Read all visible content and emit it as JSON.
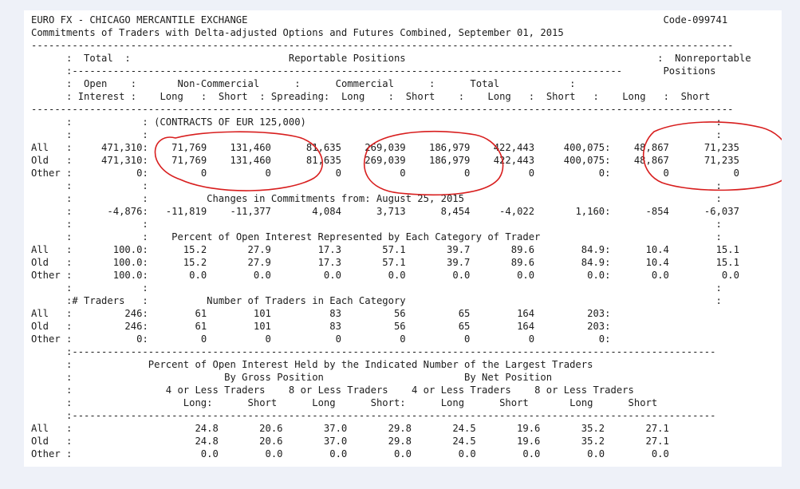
{
  "header": {
    "title": "EURO FX - CHICAGO MERCANTILE EXCHANGE",
    "code": "Code-099741",
    "subtitle": "Commitments of Traders with Delta-adjusted Options and Futures Combined, September 01, 2015"
  },
  "column_headers": {
    "total": "Total",
    "reportable_positions": "Reportable Positions",
    "nonreportable": "Nonreportable",
    "positions": "Positions",
    "open": "Open",
    "interest": "Interest",
    "non_commercial": "Non-Commercial",
    "commercial": "Commercial",
    "total_group": "Total",
    "long": "Long",
    "short": "Short",
    "spreading": "Spreading:"
  },
  "contracts_note": "(CONTRACTS OF EUR 125,000)",
  "positions": {
    "all": {
      "label": "All",
      "oi": "471,310",
      "nc_long": "71,769",
      "nc_short": "131,460",
      "nc_spread": "81,635",
      "c_long": "269,039",
      "c_short": "186,979",
      "t_long": "422,443",
      "t_short": "400,075",
      "nr_long": "48,867",
      "nr_short": "71,235"
    },
    "old": {
      "label": "Old",
      "oi": "471,310",
      "nc_long": "71,769",
      "nc_short": "131,460",
      "nc_spread": "81,635",
      "c_long": "269,039",
      "c_short": "186,979",
      "t_long": "422,443",
      "t_short": "400,075",
      "nr_long": "48,867",
      "nr_short": "71,235"
    },
    "other": {
      "label": "Other",
      "oi": "0",
      "nc_long": "0",
      "nc_short": "0",
      "nc_spread": "0",
      "c_long": "0",
      "c_short": "0",
      "t_long": "0",
      "t_short": "0",
      "nr_long": "0",
      "nr_short": "0"
    }
  },
  "changes": {
    "title": "Changes in Commitments from: August 25, 2015",
    "values": {
      "oi": "-4,876",
      "nc_long": "-11,819",
      "nc_short": "-11,377",
      "nc_spread": "4,084",
      "c_long": "3,713",
      "c_short": "8,454",
      "t_long": "-4,022",
      "t_short": "1,160",
      "nr_long": "-854",
      "nr_short": "-6,037"
    }
  },
  "percent_oi": {
    "title": "Percent of Open Interest Represented by Each Category of Trader",
    "all": {
      "label": "All",
      "oi": "100.0",
      "nc_long": "15.2",
      "nc_short": "27.9",
      "nc_spread": "17.3",
      "c_long": "57.1",
      "c_short": "39.7",
      "t_long": "89.6",
      "t_short": "84.9",
      "nr_long": "10.4",
      "nr_short": "15.1"
    },
    "old": {
      "label": "Old",
      "oi": "100.0",
      "nc_long": "15.2",
      "nc_short": "27.9",
      "nc_spread": "17.3",
      "c_long": "57.1",
      "c_short": "39.7",
      "t_long": "89.6",
      "t_short": "84.9",
      "nr_long": "10.4",
      "nr_short": "15.1"
    },
    "other": {
      "label": "Other",
      "oi": "100.0",
      "nc_long": "0.0",
      "nc_short": "0.0",
      "nc_spread": "0.0",
      "c_long": "0.0",
      "c_short": "0.0",
      "t_long": "0.0",
      "t_short": "0.0",
      "nr_long": "0.0",
      "nr_short": "0.0"
    }
  },
  "traders": {
    "label": "# Traders",
    "title": "Number of Traders in Each Category",
    "all": {
      "label": "All",
      "oi": "246",
      "nc_long": "61",
      "nc_short": "101",
      "nc_spread": "83",
      "c_long": "56",
      "c_short": "65",
      "t_long": "164",
      "t_short": "203"
    },
    "old": {
      "label": "Old",
      "oi": "246",
      "nc_long": "61",
      "nc_short": "101",
      "nc_spread": "83",
      "c_long": "56",
      "c_short": "65",
      "t_long": "164",
      "t_short": "203"
    },
    "other": {
      "label": "Other",
      "oi": "0",
      "nc_long": "0",
      "nc_short": "0",
      "nc_spread": "0",
      "c_long": "0",
      "c_short": "0",
      "t_long": "0",
      "t_short": "0"
    }
  },
  "concentration": {
    "title": "Percent of Open Interest Held by the Indicated Number of the Largest Traders",
    "gross": "By Gross Position",
    "net": "By Net Position",
    "four_or_less": "4 or Less Traders",
    "eight_or_less": "8 or Less Traders",
    "long_colon": "Long:",
    "long": "Long",
    "short": "Short",
    "short_colon": "Short:",
    "all": {
      "label": "All",
      "g4l": "24.8",
      "g4s": "20.6",
      "g8l": "37.0",
      "g8s": "29.8",
      "n4l": "24.5",
      "n4s": "19.6",
      "n8l": "35.2",
      "n8s": "27.1"
    },
    "old": {
      "label": "Old",
      "g4l": "24.8",
      "g4s": "20.6",
      "g8l": "37.0",
      "g8s": "29.8",
      "n4l": "24.5",
      "n4s": "19.6",
      "n8l": "35.2",
      "n8s": "27.1"
    },
    "other": {
      "label": "Other",
      "g4l": "0.0",
      "g4s": "0.0",
      "g8l": "0.0",
      "g8s": "0.0",
      "n4l": "0.0",
      "n4s": "0.0",
      "n8l": "0.0",
      "n8s": "0.0"
    }
  },
  "annotation_color": "#d81e1e"
}
